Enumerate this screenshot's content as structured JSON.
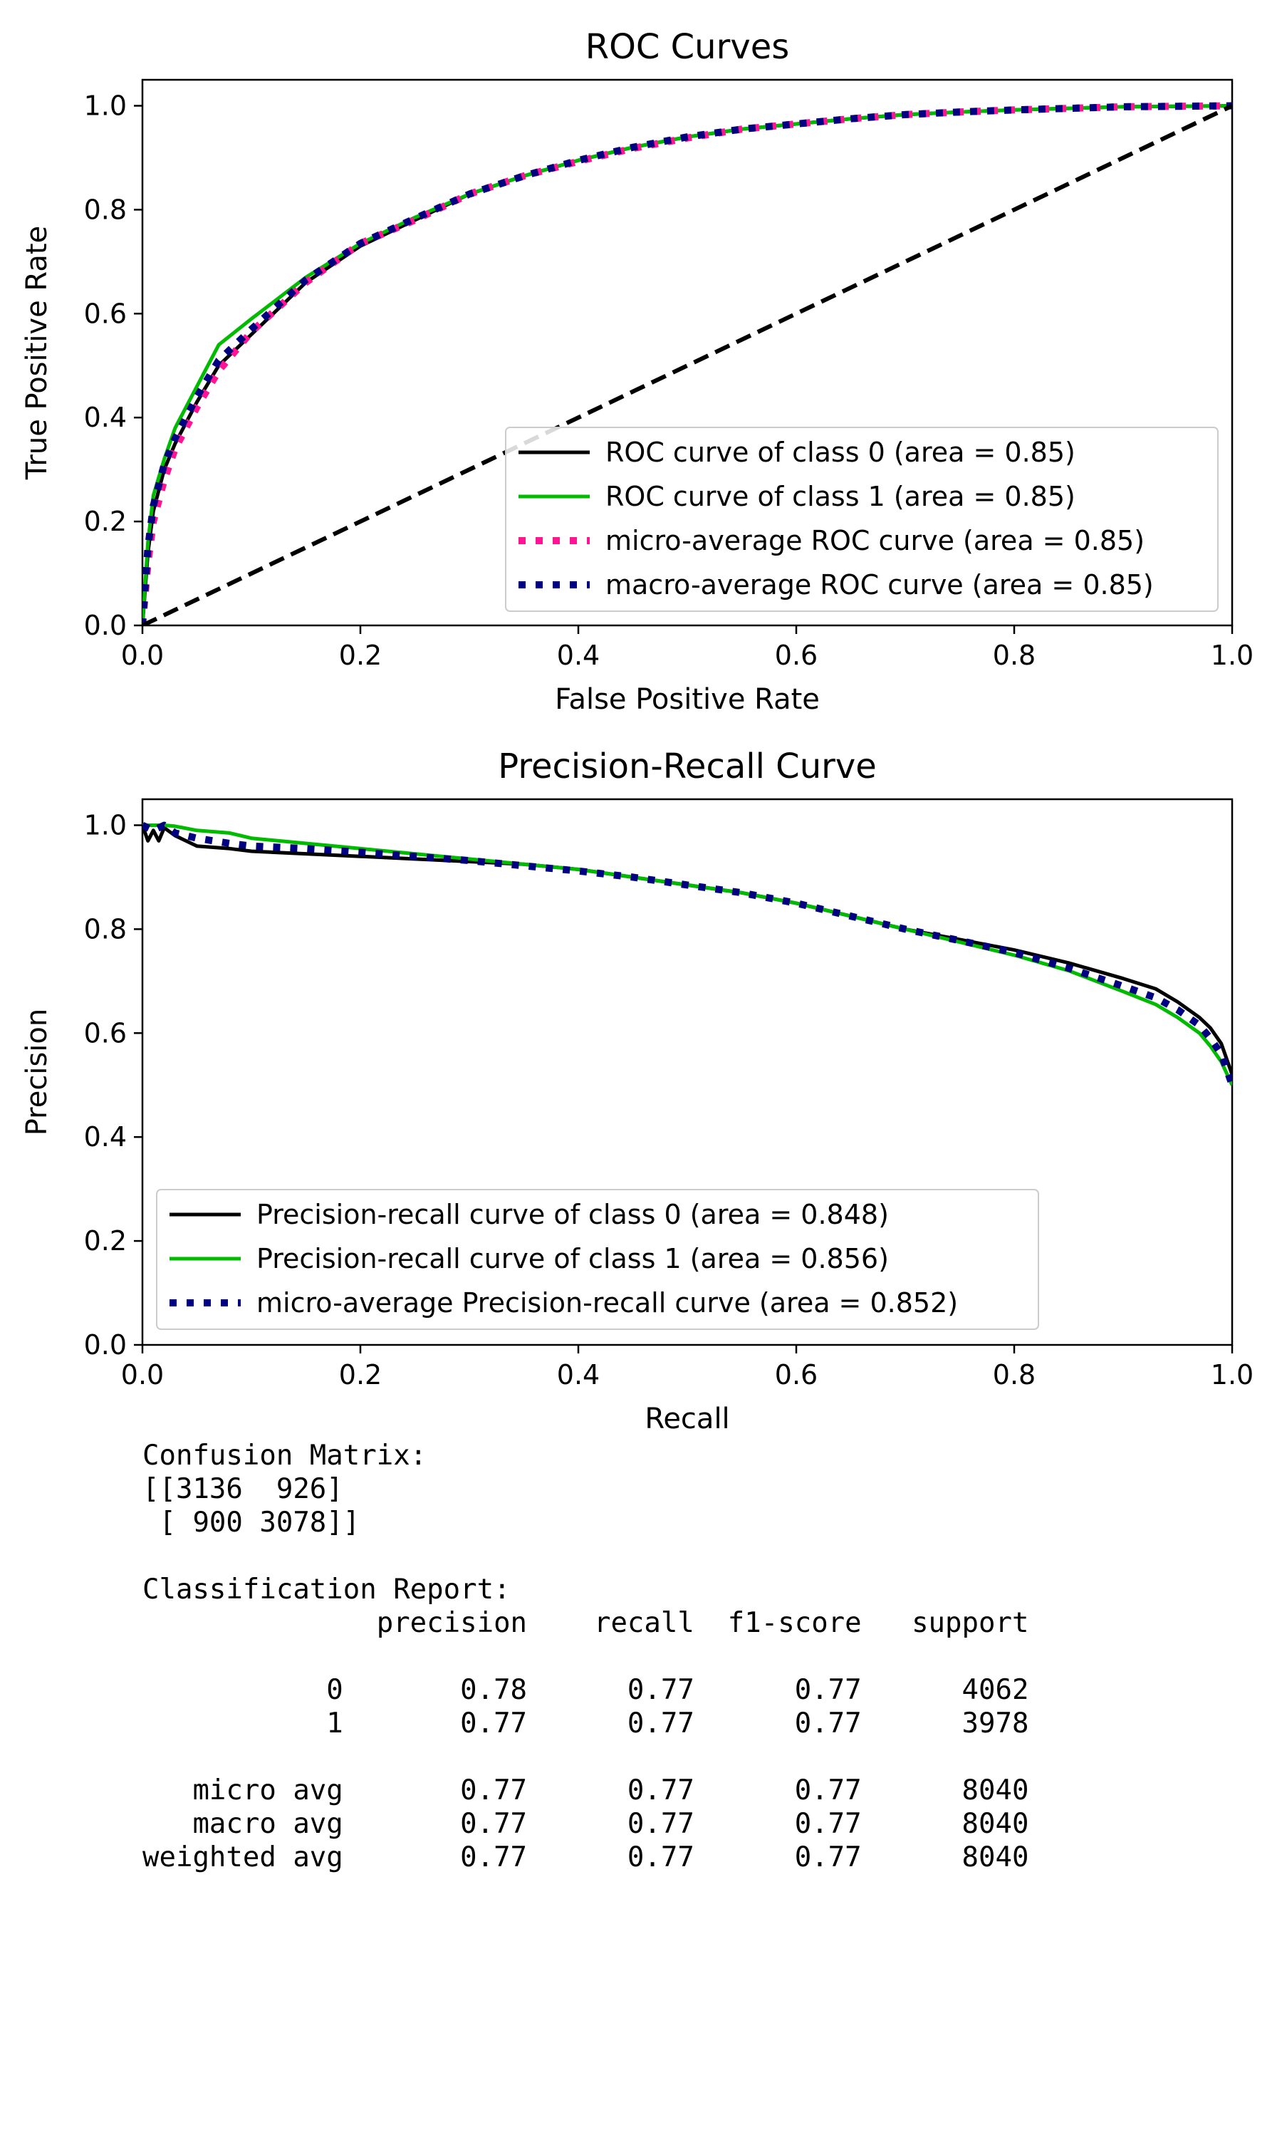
{
  "chart_data": [
    {
      "type": "line",
      "title": "ROC Curves",
      "xlabel": "False Positive Rate",
      "ylabel": "True Positive Rate",
      "xlim": [
        0.0,
        1.0
      ],
      "ylim": [
        0.0,
        1.05
      ],
      "xticks": [
        "0.0",
        "0.2",
        "0.4",
        "0.6",
        "0.8",
        "1.0"
      ],
      "yticks": [
        "0.0",
        "0.2",
        "0.4",
        "0.6",
        "0.8",
        "1.0"
      ],
      "legend_position": "lower-right",
      "series": [
        {
          "name": "ROC curve of class 0 (area = 0.85)",
          "color": "#000000",
          "style": "solid",
          "x": [
            0,
            0.005,
            0.01,
            0.02,
            0.03,
            0.05,
            0.07,
            0.1,
            0.15,
            0.2,
            0.25,
            0.3,
            0.35,
            0.4,
            0.45,
            0.5,
            0.55,
            0.6,
            0.65,
            0.7,
            0.75,
            0.8,
            0.85,
            0.9,
            0.95,
            1.0
          ],
          "y": [
            0,
            0.14,
            0.22,
            0.3,
            0.35,
            0.43,
            0.5,
            0.56,
            0.66,
            0.73,
            0.78,
            0.83,
            0.865,
            0.895,
            0.92,
            0.94,
            0.955,
            0.965,
            0.975,
            0.983,
            0.988,
            0.992,
            0.995,
            0.998,
            0.999,
            1.0
          ]
        },
        {
          "name": "ROC curve of class 1 (area = 0.85)",
          "color": "#00bb00",
          "style": "solid",
          "x": [
            0,
            0.005,
            0.01,
            0.02,
            0.03,
            0.05,
            0.07,
            0.1,
            0.15,
            0.2,
            0.25,
            0.3,
            0.35,
            0.4,
            0.45,
            0.5,
            0.55,
            0.6,
            0.65,
            0.7,
            0.75,
            0.8,
            0.85,
            0.9,
            0.95,
            1.0
          ],
          "y": [
            0,
            0.16,
            0.25,
            0.32,
            0.38,
            0.46,
            0.54,
            0.59,
            0.67,
            0.735,
            0.785,
            0.83,
            0.865,
            0.895,
            0.92,
            0.94,
            0.955,
            0.965,
            0.975,
            0.983,
            0.988,
            0.992,
            0.995,
            0.998,
            0.999,
            1.0
          ]
        },
        {
          "name": "micro-average ROC curve (area = 0.85)",
          "color": "#ff1493",
          "style": "dotted",
          "x": [
            0,
            0.005,
            0.01,
            0.02,
            0.03,
            0.05,
            0.07,
            0.1,
            0.15,
            0.2,
            0.25,
            0.3,
            0.35,
            0.4,
            0.45,
            0.5,
            0.55,
            0.6,
            0.65,
            0.7,
            0.75,
            0.8,
            0.85,
            0.9,
            0.95,
            1.0
          ],
          "y": [
            0,
            0.12,
            0.2,
            0.28,
            0.34,
            0.42,
            0.49,
            0.565,
            0.66,
            0.735,
            0.78,
            0.83,
            0.865,
            0.893,
            0.918,
            0.938,
            0.955,
            0.965,
            0.975,
            0.983,
            0.988,
            0.992,
            0.995,
            0.998,
            0.999,
            1.0
          ]
        },
        {
          "name": "macro-average ROC curve (area = 0.85)",
          "color": "#000080",
          "style": "dotted",
          "x": [
            0,
            0.005,
            0.01,
            0.02,
            0.03,
            0.05,
            0.07,
            0.1,
            0.15,
            0.2,
            0.25,
            0.3,
            0.35,
            0.4,
            0.45,
            0.5,
            0.55,
            0.6,
            0.65,
            0.7,
            0.75,
            0.8,
            0.85,
            0.9,
            0.95,
            1.0
          ],
          "y": [
            0,
            0.15,
            0.23,
            0.31,
            0.36,
            0.44,
            0.51,
            0.57,
            0.665,
            0.735,
            0.783,
            0.83,
            0.865,
            0.895,
            0.92,
            0.94,
            0.955,
            0.965,
            0.975,
            0.983,
            0.988,
            0.992,
            0.995,
            0.998,
            0.999,
            1.0
          ]
        },
        {
          "name": "",
          "color": "#000000",
          "style": "dashed",
          "x": [
            0,
            1
          ],
          "y": [
            0,
            1
          ]
        }
      ]
    },
    {
      "type": "line",
      "title": "Precision-Recall Curve",
      "xlabel": "Recall",
      "ylabel": "Precision",
      "xlim": [
        0.0,
        1.0
      ],
      "ylim": [
        0.0,
        1.05
      ],
      "xticks": [
        "0.0",
        "0.2",
        "0.4",
        "0.6",
        "0.8",
        "1.0"
      ],
      "yticks": [
        "0.0",
        "0.2",
        "0.4",
        "0.6",
        "0.8",
        "1.0"
      ],
      "legend_position": "lower-left",
      "series": [
        {
          "name": "Precision-recall curve of class 0 (area = 0.848)",
          "color": "#000000",
          "style": "solid",
          "x": [
            0,
            0.005,
            0.01,
            0.015,
            0.02,
            0.03,
            0.05,
            0.08,
            0.1,
            0.15,
            0.2,
            0.25,
            0.3,
            0.35,
            0.4,
            0.45,
            0.5,
            0.55,
            0.6,
            0.65,
            0.7,
            0.75,
            0.8,
            0.85,
            0.9,
            0.93,
            0.95,
            0.97,
            0.98,
            0.99,
            1.0
          ],
          "y": [
            1.0,
            0.97,
            0.99,
            0.97,
            0.995,
            0.98,
            0.96,
            0.955,
            0.95,
            0.945,
            0.94,
            0.935,
            0.93,
            0.925,
            0.915,
            0.9,
            0.885,
            0.87,
            0.85,
            0.825,
            0.8,
            0.78,
            0.76,
            0.735,
            0.705,
            0.685,
            0.66,
            0.63,
            0.61,
            0.58,
            0.52
          ]
        },
        {
          "name": "Precision-recall curve of class 1 (area = 0.856)",
          "color": "#00bb00",
          "style": "solid",
          "x": [
            0,
            0.01,
            0.02,
            0.03,
            0.05,
            0.08,
            0.1,
            0.15,
            0.2,
            0.25,
            0.3,
            0.35,
            0.4,
            0.45,
            0.5,
            0.55,
            0.6,
            0.65,
            0.7,
            0.75,
            0.8,
            0.85,
            0.9,
            0.93,
            0.95,
            0.97,
            0.98,
            0.99,
            1.0
          ],
          "y": [
            1.0,
            1.0,
            1.0,
            0.998,
            0.99,
            0.985,
            0.975,
            0.965,
            0.955,
            0.945,
            0.935,
            0.925,
            0.915,
            0.9,
            0.885,
            0.87,
            0.85,
            0.825,
            0.8,
            0.775,
            0.75,
            0.72,
            0.68,
            0.655,
            0.63,
            0.6,
            0.575,
            0.545,
            0.5
          ]
        },
        {
          "name": "micro-average Precision-recall curve (area = 0.852)",
          "color": "#000080",
          "style": "dotted",
          "x": [
            0,
            0.01,
            0.02,
            0.03,
            0.05,
            0.08,
            0.1,
            0.15,
            0.2,
            0.25,
            0.3,
            0.35,
            0.4,
            0.45,
            0.5,
            0.55,
            0.6,
            0.65,
            0.7,
            0.75,
            0.8,
            0.85,
            0.9,
            0.93,
            0.95,
            0.97,
            0.98,
            0.99,
            1.0
          ],
          "y": [
            1.0,
            0.99,
            1.0,
            0.985,
            0.975,
            0.965,
            0.96,
            0.955,
            0.948,
            0.94,
            0.932,
            0.922,
            0.912,
            0.9,
            0.885,
            0.87,
            0.85,
            0.825,
            0.8,
            0.778,
            0.755,
            0.725,
            0.69,
            0.668,
            0.645,
            0.615,
            0.59,
            0.56,
            0.5
          ]
        }
      ]
    }
  ],
  "report": {
    "lines": [
      "Confusion Matrix:",
      "[[3136  926]",
      " [ 900 3078]]",
      "",
      "Classification Report:",
      "              precision    recall  f1-score   support",
      "",
      "           0       0.78      0.77      0.77      4062",
      "           1       0.77      0.77      0.77      3978",
      "",
      "   micro avg       0.77      0.77      0.77      8040",
      "   macro avg       0.77      0.77      0.77      8040",
      "weighted avg       0.77      0.77      0.77      8040"
    ]
  }
}
